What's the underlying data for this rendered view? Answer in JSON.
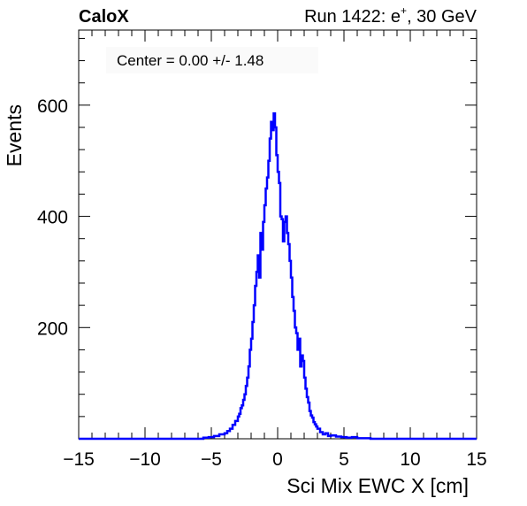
{
  "header": {
    "brand": "CaloX",
    "run_title_prefix": "Run 1422: e",
    "run_title_sup": "+",
    "run_title_suffix": ", 30 GeV"
  },
  "annotation": "Center = 0.00 +/- 1.48",
  "chart_data": {
    "type": "histogram",
    "xlabel": "Sci Mix EWC X [cm]",
    "ylabel": "Events",
    "xlim": [
      -15,
      15
    ],
    "ylim": [
      0,
      735
    ],
    "grid": false,
    "legend": "none",
    "line_color": "#0000ff",
    "xticks": [
      {
        "value": -15,
        "label": "−15"
      },
      {
        "value": -10,
        "label": "−10"
      },
      {
        "value": -5,
        "label": "−5"
      },
      {
        "value": 0,
        "label": "0"
      },
      {
        "value": 5,
        "label": "5"
      },
      {
        "value": 10,
        "label": "10"
      },
      {
        "value": 15,
        "label": "15"
      }
    ],
    "yticks": [
      {
        "value": 200,
        "label": "200"
      },
      {
        "value": 400,
        "label": "400"
      },
      {
        "value": 600,
        "label": "600"
      }
    ],
    "bin_width": 0.1,
    "bins": [
      {
        "x": -6.0,
        "y": 0
      },
      {
        "x": -5.6,
        "y": 2
      },
      {
        "x": -5.2,
        "y": 3
      },
      {
        "x": -4.8,
        "y": 5
      },
      {
        "x": -4.4,
        "y": 8
      },
      {
        "x": -4.0,
        "y": 10
      },
      {
        "x": -3.8,
        "y": 14
      },
      {
        "x": -3.6,
        "y": 18
      },
      {
        "x": -3.4,
        "y": 25
      },
      {
        "x": -3.2,
        "y": 32
      },
      {
        "x": -3.0,
        "y": 40
      },
      {
        "x": -2.9,
        "y": 45
      },
      {
        "x": -2.8,
        "y": 55
      },
      {
        "x": -2.7,
        "y": 60
      },
      {
        "x": -2.6,
        "y": 70
      },
      {
        "x": -2.5,
        "y": 80
      },
      {
        "x": -2.4,
        "y": 95
      },
      {
        "x": -2.3,
        "y": 110
      },
      {
        "x": -2.2,
        "y": 130
      },
      {
        "x": -2.1,
        "y": 160
      },
      {
        "x": -2.0,
        "y": 180
      },
      {
        "x": -1.9,
        "y": 210
      },
      {
        "x": -1.8,
        "y": 240
      },
      {
        "x": -1.7,
        "y": 275
      },
      {
        "x": -1.6,
        "y": 300
      },
      {
        "x": -1.5,
        "y": 330
      },
      {
        "x": -1.4,
        "y": 290
      },
      {
        "x": -1.3,
        "y": 370
      },
      {
        "x": -1.2,
        "y": 340
      },
      {
        "x": -1.1,
        "y": 390
      },
      {
        "x": -1.0,
        "y": 420
      },
      {
        "x": -0.9,
        "y": 450
      },
      {
        "x": -0.8,
        "y": 470
      },
      {
        "x": -0.7,
        "y": 500
      },
      {
        "x": -0.6,
        "y": 540
      },
      {
        "x": -0.5,
        "y": 570
      },
      {
        "x": -0.4,
        "y": 555
      },
      {
        "x": -0.3,
        "y": 585
      },
      {
        "x": -0.2,
        "y": 560
      },
      {
        "x": -0.1,
        "y": 510
      },
      {
        "x": 0.0,
        "y": 480
      },
      {
        "x": 0.1,
        "y": 460
      },
      {
        "x": 0.2,
        "y": 400
      },
      {
        "x": 0.3,
        "y": 395
      },
      {
        "x": 0.4,
        "y": 355
      },
      {
        "x": 0.5,
        "y": 390
      },
      {
        "x": 0.6,
        "y": 400
      },
      {
        "x": 0.7,
        "y": 370
      },
      {
        "x": 0.8,
        "y": 350
      },
      {
        "x": 0.9,
        "y": 320
      },
      {
        "x": 1.0,
        "y": 290
      },
      {
        "x": 1.1,
        "y": 255
      },
      {
        "x": 1.2,
        "y": 230
      },
      {
        "x": 1.3,
        "y": 200
      },
      {
        "x": 1.4,
        "y": 190
      },
      {
        "x": 1.5,
        "y": 160
      },
      {
        "x": 1.6,
        "y": 180
      },
      {
        "x": 1.7,
        "y": 130
      },
      {
        "x": 1.8,
        "y": 150
      },
      {
        "x": 1.9,
        "y": 140
      },
      {
        "x": 2.0,
        "y": 110
      },
      {
        "x": 2.1,
        "y": 90
      },
      {
        "x": 2.2,
        "y": 75
      },
      {
        "x": 2.3,
        "y": 65
      },
      {
        "x": 2.4,
        "y": 50
      },
      {
        "x": 2.5,
        "y": 42
      },
      {
        "x": 2.6,
        "y": 38
      },
      {
        "x": 2.7,
        "y": 30
      },
      {
        "x": 2.8,
        "y": 26
      },
      {
        "x": 2.9,
        "y": 22
      },
      {
        "x": 3.0,
        "y": 18
      },
      {
        "x": 3.2,
        "y": 12
      },
      {
        "x": 3.4,
        "y": 8
      },
      {
        "x": 3.6,
        "y": 10
      },
      {
        "x": 3.8,
        "y": 5
      },
      {
        "x": 4.0,
        "y": 6
      },
      {
        "x": 4.4,
        "y": 4
      },
      {
        "x": 4.8,
        "y": 3
      },
      {
        "x": 5.2,
        "y": 2
      },
      {
        "x": 5.6,
        "y": 3
      },
      {
        "x": 6.0,
        "y": 1
      },
      {
        "x": 6.5,
        "y": 1
      },
      {
        "x": 7.0,
        "y": 0
      }
    ]
  }
}
